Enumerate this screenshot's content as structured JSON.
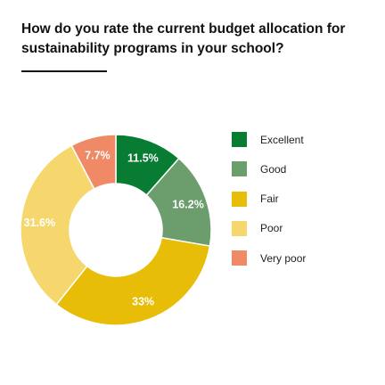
{
  "title": "How do you rate the current budget allocation for sustainability programs in your school?",
  "chart_data": {
    "type": "pie",
    "style": "donut",
    "title": "How do you rate the current budget allocation for sustainability programs in your school?",
    "legend_position": "right",
    "categories": [
      "Excellent",
      "Good",
      "Fair",
      "Poor",
      "Very poor"
    ],
    "values": [
      11.5,
      16.2,
      33,
      31.6,
      7.7
    ],
    "labels": [
      "11.5%",
      "16.2%",
      "33%",
      "31.6%",
      "7.7%"
    ],
    "colors": [
      "#077c32",
      "#6c9e6d",
      "#e8bd08",
      "#f5d76e",
      "#f08a66"
    ]
  }
}
